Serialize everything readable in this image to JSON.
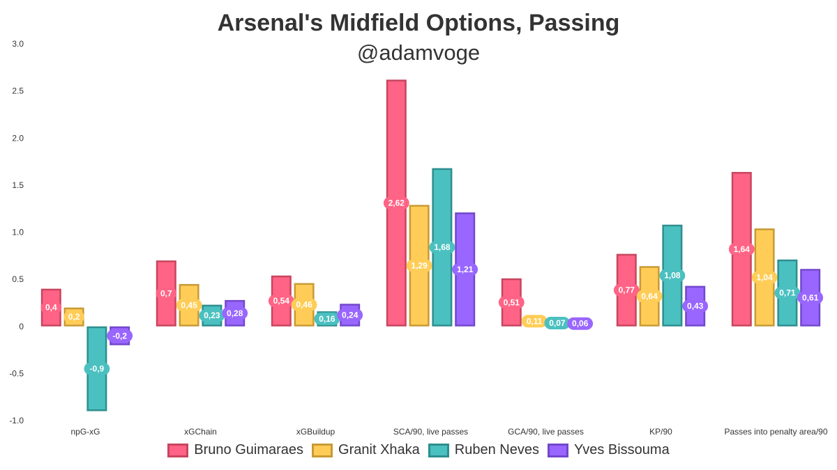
{
  "chart_data": {
    "type": "bar",
    "title": "Arsenal's Midfield Options, Passing",
    "subtitle": "@adamvoge",
    "xlabel": "",
    "ylabel": "",
    "ylim": [
      -1.0,
      3.0
    ],
    "yticks": [
      "3.0",
      "2.5",
      "2.0",
      "1.5",
      "1.0",
      "0.5",
      "0",
      "-0.5",
      "-1.0"
    ],
    "ytick_values": [
      3.0,
      2.5,
      2.0,
      1.5,
      1.0,
      0.5,
      0,
      -0.5,
      -1.0
    ],
    "grid": false,
    "legend_position": "bottom",
    "categories": [
      "npG-xG",
      "xGChain",
      "xGBuildup",
      "SCA/90, live passes",
      "GCA/90, live passes",
      "KP/90",
      "Passes into penalty area/90"
    ],
    "series": [
      {
        "name": "Bruno Guimaraes",
        "fill": "#ff6385",
        "stroke": "#c8455f",
        "values": [
          0.4,
          0.7,
          0.54,
          2.62,
          0.51,
          0.77,
          1.64
        ],
        "labels": [
          "0,4",
          "0,7",
          "0,54",
          "2,62",
          "0,51",
          "0,77",
          "1,64"
        ]
      },
      {
        "name": "Granit Xhaka",
        "fill": "#ffcd57",
        "stroke": "#c89a35",
        "values": [
          0.2,
          0.45,
          0.46,
          1.29,
          0.11,
          0.64,
          1.04
        ],
        "labels": [
          "0,2",
          "0,45",
          "0,46",
          "1,29",
          "0,11",
          "0,64",
          "1,04"
        ]
      },
      {
        "name": "Ruben Neves",
        "fill": "#4bc0c0",
        "stroke": "#2e8e8e",
        "values": [
          -0.9,
          0.23,
          0.16,
          1.68,
          0.07,
          1.08,
          0.71
        ],
        "labels": [
          "-0,9",
          "0,23",
          "0,16",
          "1,68",
          "0,07",
          "1,08",
          "0,71"
        ]
      },
      {
        "name": "Yves Bissouma",
        "fill": "#9966ff",
        "stroke": "#7248cc",
        "values": [
          -0.2,
          0.28,
          0.24,
          1.21,
          0.06,
          0.43,
          0.61
        ],
        "labels": [
          "-0,2",
          "0,28",
          "0,24",
          "1,21",
          "0,06",
          "0,43",
          "0,61"
        ]
      }
    ]
  }
}
